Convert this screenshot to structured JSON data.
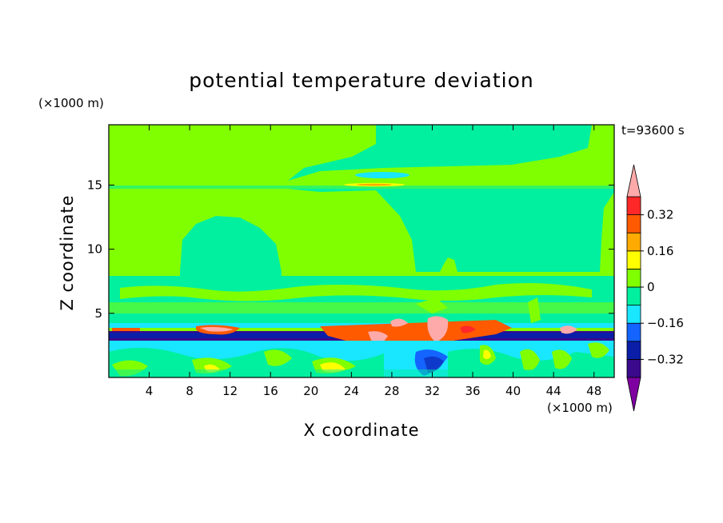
{
  "chart_data": {
    "type": "heatmap",
    "title": "potential temperature deviation",
    "xlabel": "X coordinate",
    "ylabel": "Z coordinate",
    "x_unit": "(×1000 m)",
    "y_unit": "(×1000 m)",
    "time_label": "t=93600 s",
    "xlim": [
      0,
      50
    ],
    "ylim": [
      0,
      19.7
    ],
    "x_ticks": [
      4,
      8,
      12,
      16,
      20,
      24,
      28,
      32,
      36,
      40,
      44,
      48
    ],
    "y_ticks": [
      5,
      10,
      15
    ],
    "colorbar": {
      "levels": [
        -0.4,
        -0.32,
        -0.24,
        -0.16,
        -0.08,
        0,
        0.08,
        0.16,
        0.24,
        0.32,
        0.4
      ],
      "tick_labels": [
        "0.32",
        "0.16",
        "0",
        "−0.16",
        "−0.32"
      ],
      "tick_values": [
        0.32,
        0.16,
        0,
        -0.16,
        -0.32
      ],
      "extend": "both",
      "colors": [
        "#7f00a0",
        "#3a0a8c",
        "#0a1ea8",
        "#1464ff",
        "#19e6ff",
        "#00f0a0",
        "#80ff00",
        "#ffff00",
        "#ffaa00",
        "#ff5a00",
        "#ff2828",
        "#ffaaaa"
      ]
    }
  }
}
